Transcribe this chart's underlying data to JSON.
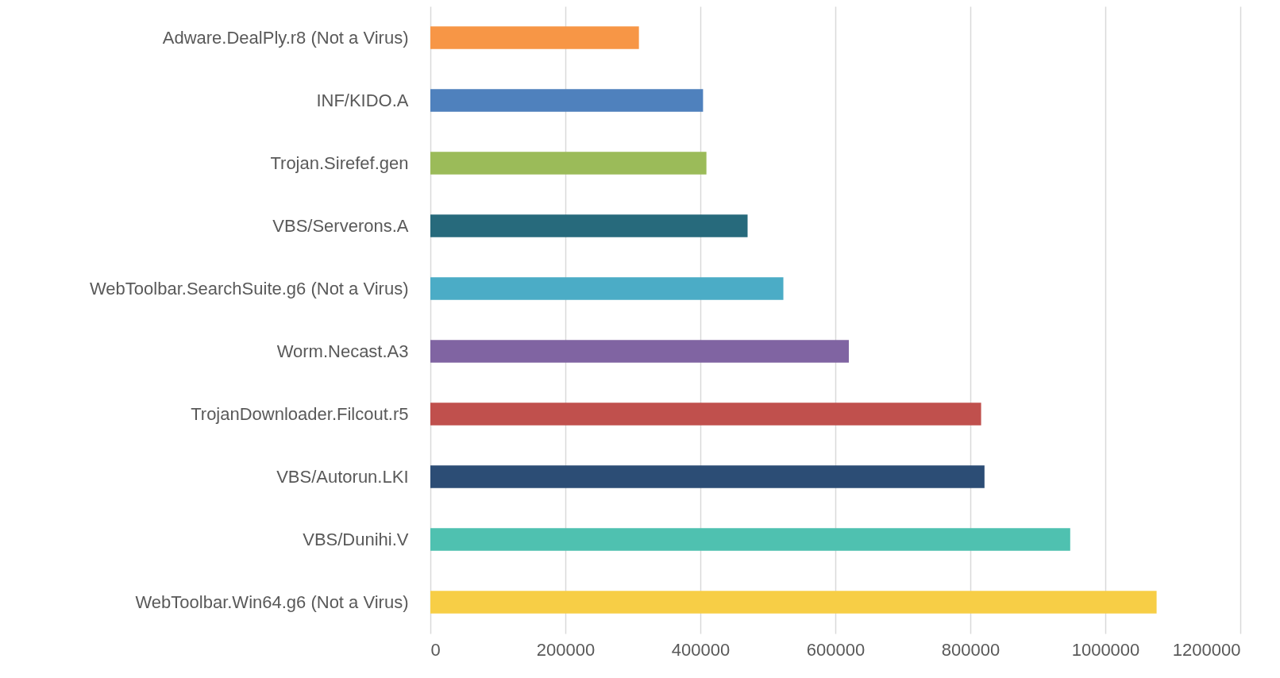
{
  "chart_data": {
    "type": "bar",
    "orientation": "horizontal",
    "categories": [
      "Adware.DealPly.r8 (Not a Virus)",
      "INF/KIDO.A",
      "Trojan.Sirefef.gen",
      "VBS/Serverons.A",
      "WebToolbar.SearchSuite.g6 (Not a Virus)",
      "Worm.Necast.A3",
      "TrojanDownloader.Filcout.r5",
      "VBS/Autorun.LKI",
      "VBS/Dunihi.V",
      "WebToolbar.Win64.g6 (Not a Virus)"
    ],
    "values": [
      309000,
      404000,
      409000,
      470000,
      523000,
      620000,
      816000,
      821000,
      948000,
      1076000
    ],
    "colors": [
      "#f79646",
      "#4f81bd",
      "#9bbb59",
      "#276a7c",
      "#4bacc6",
      "#8064a2",
      "#c0504d",
      "#2c4d75",
      "#4fc1b0",
      "#f7ce46"
    ],
    "xlim": [
      0,
      1200000
    ],
    "xticks": [
      0,
      200000,
      400000,
      600000,
      800000,
      1000000,
      1200000
    ],
    "grid": "x"
  }
}
